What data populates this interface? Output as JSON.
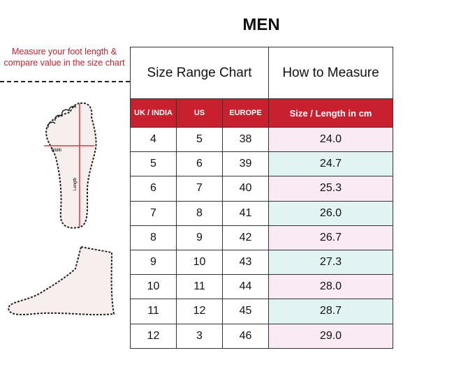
{
  "title": "MEN",
  "instruction": "Measure your foot length & compare value in the size chart",
  "foot_labels": {
    "width": "Width",
    "length": "Length"
  },
  "table": {
    "section_headers": [
      "Size Range Chart",
      "How to Measure"
    ],
    "columns": [
      "UK / INDIA",
      "US",
      "EUROPE",
      "Size / Length in cm"
    ],
    "rows": [
      [
        "4",
        "5",
        "38",
        "24.0"
      ],
      [
        "5",
        "6",
        "39",
        "24.7"
      ],
      [
        "6",
        "7",
        "40",
        "25.3"
      ],
      [
        "7",
        "8",
        "41",
        "26.0"
      ],
      [
        "8",
        "9",
        "42",
        "26.7"
      ],
      [
        "9",
        "10",
        "43",
        "27.3"
      ],
      [
        "10",
        "11",
        "44",
        "28.0"
      ],
      [
        "11",
        "12",
        "45",
        "28.7"
      ],
      [
        "12",
        "3",
        "46",
        "29.0"
      ]
    ]
  },
  "colors": {
    "accent": "#c8202f",
    "row_pink": "#f9eaf4",
    "row_cyan": "#e2f3f4"
  }
}
